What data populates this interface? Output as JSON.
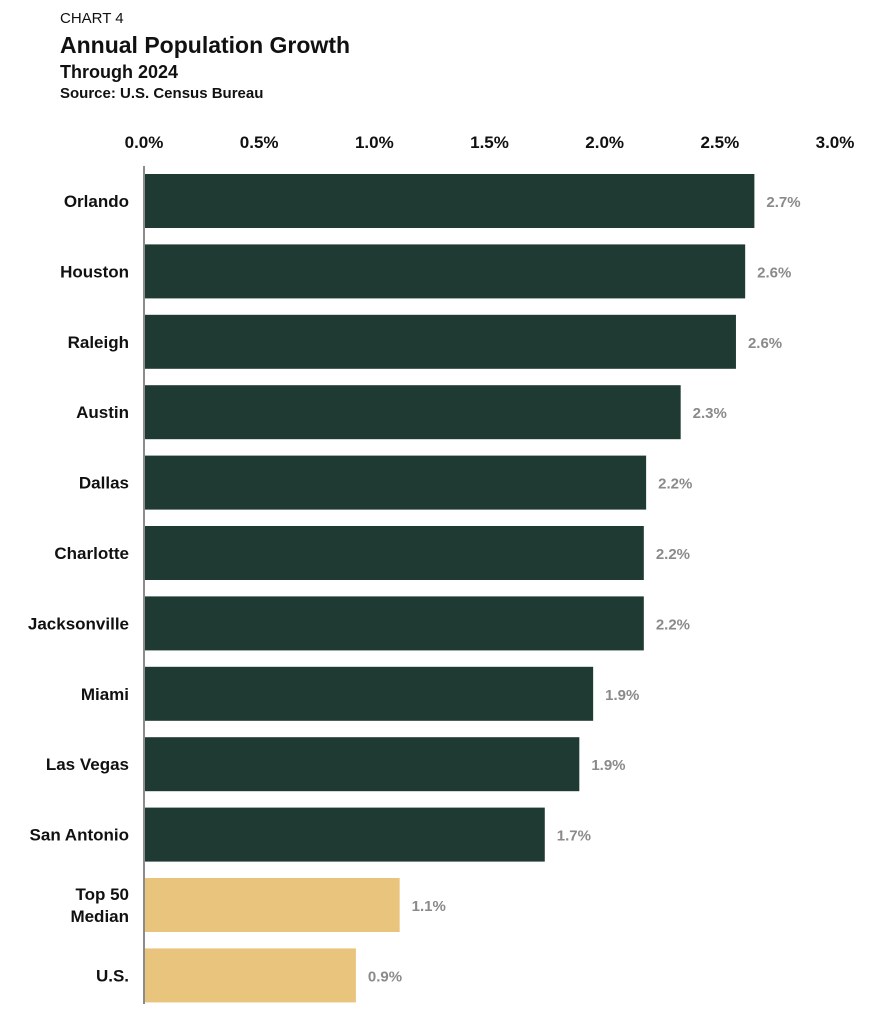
{
  "header": {
    "eyebrow": "CHART 4",
    "title": "Annual Population Growth",
    "subtitle": "Through 2024",
    "source": "Source: U.S. Census Bureau"
  },
  "colors": {
    "primary": "#1f3a32",
    "highlight": "#e8c47c",
    "value_label": "#8a8a8a"
  },
  "chart_data": {
    "type": "bar",
    "orientation": "horizontal",
    "categories": [
      [
        "Orlando"
      ],
      [
        "Houston"
      ],
      [
        "Raleigh"
      ],
      [
        "Austin"
      ],
      [
        "Dallas"
      ],
      [
        "Charlotte"
      ],
      [
        "Jacksonville"
      ],
      [
        "Miami"
      ],
      [
        "Las Vegas"
      ],
      [
        "San Antonio"
      ],
      [
        "Top 50",
        "Median"
      ],
      [
        "U.S."
      ]
    ],
    "values": [
      2.65,
      2.61,
      2.57,
      2.33,
      2.18,
      2.17,
      2.17,
      1.95,
      1.89,
      1.74,
      1.11,
      0.92
    ],
    "data_labels": [
      "2.7%",
      "2.6%",
      "2.6%",
      "2.3%",
      "2.2%",
      "2.2%",
      "2.2%",
      "1.9%",
      "1.9%",
      "1.7%",
      "1.1%",
      "0.9%"
    ],
    "highlight": [
      false,
      false,
      false,
      false,
      false,
      false,
      false,
      false,
      false,
      false,
      true,
      true
    ],
    "xlim": [
      0,
      3.0
    ],
    "xticks": [
      0,
      0.5,
      1.0,
      1.5,
      2.0,
      2.5,
      3.0
    ],
    "xtick_labels": [
      "0.0%",
      "0.5%",
      "1.0%",
      "1.5%",
      "2.0%",
      "2.5%",
      "3.0%"
    ],
    "axis_position": "top",
    "grid": false,
    "legend": "none"
  }
}
